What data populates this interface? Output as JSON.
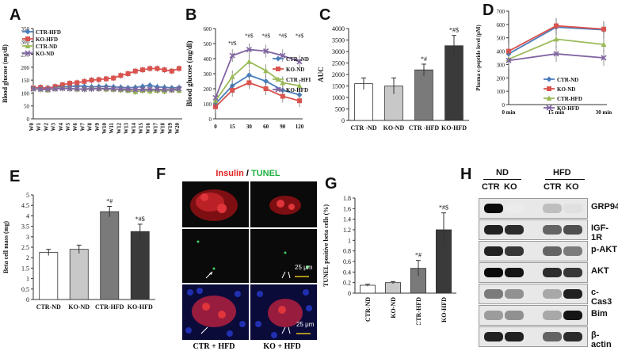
{
  "panel_labels": {
    "A": "A",
    "B": "B",
    "C": "C",
    "D": "D",
    "E": "E",
    "F": "F",
    "G": "G",
    "H": "H"
  },
  "colors": {
    "ctr_hfd": "#4a7ebb",
    "ko_hfd": "#d9534f",
    "ctr_nd": "#9bbb59",
    "ko_nd": "#8064a2"
  },
  "chart_data": [
    {
      "id": "A",
      "type": "line",
      "ylabel": "Blood glucose (mg/dl)",
      "x": [
        "W0",
        "W1",
        "W2",
        "W3",
        "W4",
        "W5",
        "W6",
        "W7",
        "W8",
        "W9",
        "W10",
        "W11",
        "W12",
        "W13",
        "W14",
        "W15",
        "W16",
        "W17",
        "W18",
        "W19",
        "W20"
      ],
      "ylim": [
        0,
        350
      ],
      "yticks": [
        "0",
        "50",
        "100",
        "150",
        "200",
        "250",
        "300",
        "350"
      ],
      "series": [
        {
          "name": "CTR-HFD",
          "color": "#4a7ebb",
          "marker": "diamond",
          "values": [
            120,
            118,
            120,
            122,
            125,
            125,
            128,
            126,
            124,
            125,
            126,
            124,
            122,
            120,
            122,
            126,
            130,
            124,
            122,
            120,
            121
          ]
        },
        {
          "name": "KO-HFD",
          "color": "#d9534f",
          "marker": "square",
          "values": [
            120,
            122,
            118,
            125,
            132,
            138,
            140,
            145,
            150,
            152,
            155,
            158,
            168,
            175,
            185,
            190,
            195,
            195,
            190,
            185,
            195
          ]
        },
        {
          "name": "CTR-ND",
          "color": "#9bbb59",
          "marker": "triangle",
          "values": [
            118,
            115,
            112,
            118,
            120,
            118,
            115,
            116,
            118,
            117,
            115,
            114,
            113,
            110,
            105,
            110,
            108,
            110,
            108,
            112,
            110
          ]
        },
        {
          "name": "KO-ND",
          "color": "#8064a2",
          "marker": "x",
          "values": [
            116,
            115,
            114,
            116,
            118,
            117,
            116,
            115,
            116,
            117,
            118,
            116,
            115,
            114,
            113,
            114,
            115,
            114,
            113,
            112,
            116
          ]
        }
      ]
    },
    {
      "id": "B",
      "type": "line",
      "ylabel": "Blood glucose (mg/dl)",
      "x": [
        "0",
        "15",
        "30",
        "60",
        "90",
        "120"
      ],
      "ylim": [
        0,
        600
      ],
      "yticks": [
        "0",
        "100",
        "200",
        "300",
        "400",
        "500",
        "600"
      ],
      "annotations": [
        {
          "x": "15",
          "y": 490,
          "text": "*#$"
        },
        {
          "x": "30",
          "y": 540,
          "text": "*#$"
        },
        {
          "x": "60",
          "y": 540,
          "text": "*#$"
        },
        {
          "x": "90",
          "y": 540,
          "text": "*#$"
        },
        {
          "x": "120",
          "y": 540,
          "text": "*#$"
        }
      ],
      "series": [
        {
          "name": "CTR -ND",
          "color": "#4a7ebb",
          "marker": "diamond",
          "values": [
            100,
            220,
            290,
            250,
            190,
            160
          ]
        },
        {
          "name": "KO-ND",
          "color": "#d9534f",
          "marker": "square",
          "values": [
            80,
            190,
            240,
            200,
            150,
            120
          ]
        },
        {
          "name": "CTR -HFD",
          "color": "#9bbb59",
          "marker": "triangle",
          "values": [
            120,
            280,
            380,
            320,
            240,
            220
          ]
        },
        {
          "name": "KO-HFD",
          "color": "#8064a2",
          "marker": "x",
          "values": [
            140,
            420,
            460,
            450,
            420,
            380
          ]
        }
      ]
    },
    {
      "id": "C",
      "type": "bar",
      "ylabel": "AUC",
      "categories": [
        "CTR -ND",
        "KO-ND",
        "CTR -HFD",
        "KO-HFD"
      ],
      "values": [
        1600,
        1500,
        2200,
        3250
      ],
      "errors": [
        250,
        350,
        250,
        450
      ],
      "annotations": [
        "",
        "",
        "*#",
        "*#$"
      ],
      "bar_colors": [
        "#ffffff",
        "#c8c8c8",
        "#7a7a7a",
        "#3a3a3a"
      ],
      "ylim": [
        0,
        4000
      ],
      "yticks": [
        "0",
        "500",
        "1000",
        "1500",
        "2000",
        "2500",
        "3000",
        "3500",
        "4000"
      ]
    },
    {
      "id": "D",
      "type": "line",
      "ylabel": "Plasma c-peptide level (pM)",
      "x": [
        "0 min",
        "15 min",
        "30 min"
      ],
      "ylim": [
        0,
        700
      ],
      "yticks": [
        "0",
        "100",
        "200",
        "300",
        "400",
        "500",
        "600",
        "700"
      ],
      "series": [
        {
          "name": "CTR-ND",
          "color": "#4a7ebb",
          "marker": "diamond",
          "values": [
            380,
            580,
            560
          ]
        },
        {
          "name": "KO-ND",
          "color": "#d9534f",
          "marker": "square",
          "values": [
            400,
            590,
            565
          ]
        },
        {
          "name": "CTR-HFD",
          "color": "#9bbb59",
          "marker": "triangle",
          "values": [
            340,
            490,
            450
          ]
        },
        {
          "name": "KO-HFD",
          "color": "#8064a2",
          "marker": "x",
          "values": [
            330,
            380,
            350
          ]
        }
      ]
    },
    {
      "id": "E",
      "type": "bar",
      "ylabel": "Beta cell mass (mg)",
      "categories": [
        "CTR-ND",
        "KO-ND",
        "CTR-HFD",
        "KO-HFD"
      ],
      "values": [
        2.25,
        2.4,
        4.2,
        3.25
      ],
      "errors": [
        0.15,
        0.2,
        0.25,
        0.35
      ],
      "annotations": [
        "",
        "",
        "*#",
        "*#$"
      ],
      "bar_colors": [
        "#ffffff",
        "#c8c8c8",
        "#7a7a7a",
        "#3a3a3a"
      ],
      "ylim": [
        0,
        5
      ],
      "yticks": [
        "0",
        "0.5",
        "1",
        "1.5",
        "2",
        "2.5",
        "3",
        "3.5",
        "4",
        "4.5",
        "5"
      ]
    },
    {
      "id": "G",
      "type": "bar",
      "ylabel": "TUNEL positive beta cells (%)",
      "categories": [
        "CTR-ND",
        "KO-ND",
        "CTR-HFD",
        "KO-HFD"
      ],
      "values": [
        0.15,
        0.2,
        0.47,
        1.2
      ],
      "errors": [
        0.02,
        0.02,
        0.15,
        0.32
      ],
      "annotations": [
        "",
        "",
        "*#",
        "*#$"
      ],
      "bar_colors": [
        "#ffffff",
        "#c8c8c8",
        "#7a7a7a",
        "#3a3a3a"
      ],
      "ylim": [
        0,
        1.8
      ],
      "yticks": [
        "0",
        "0.2",
        "0.4",
        "0.6",
        "0.8",
        "1",
        "1.2",
        "1.4",
        "1.6",
        "1.8"
      ]
    }
  ],
  "panel_f": {
    "title_insulin": "Insulin",
    "title_sep": " / ",
    "title_tunel": "TUNEL",
    "caption_left": "CTR + HFD",
    "caption_right": "KO + HFD",
    "scale": "25 μm"
  },
  "panel_h": {
    "group_nd": "ND",
    "group_hfd": "HFD",
    "lanes": [
      "CTR",
      "KO",
      "CTR",
      "KO"
    ],
    "bands": [
      "GRP94",
      "IGF-1R",
      "p-AKT",
      "AKT",
      "c-Cas3",
      "Bim",
      "β-actin"
    ]
  }
}
